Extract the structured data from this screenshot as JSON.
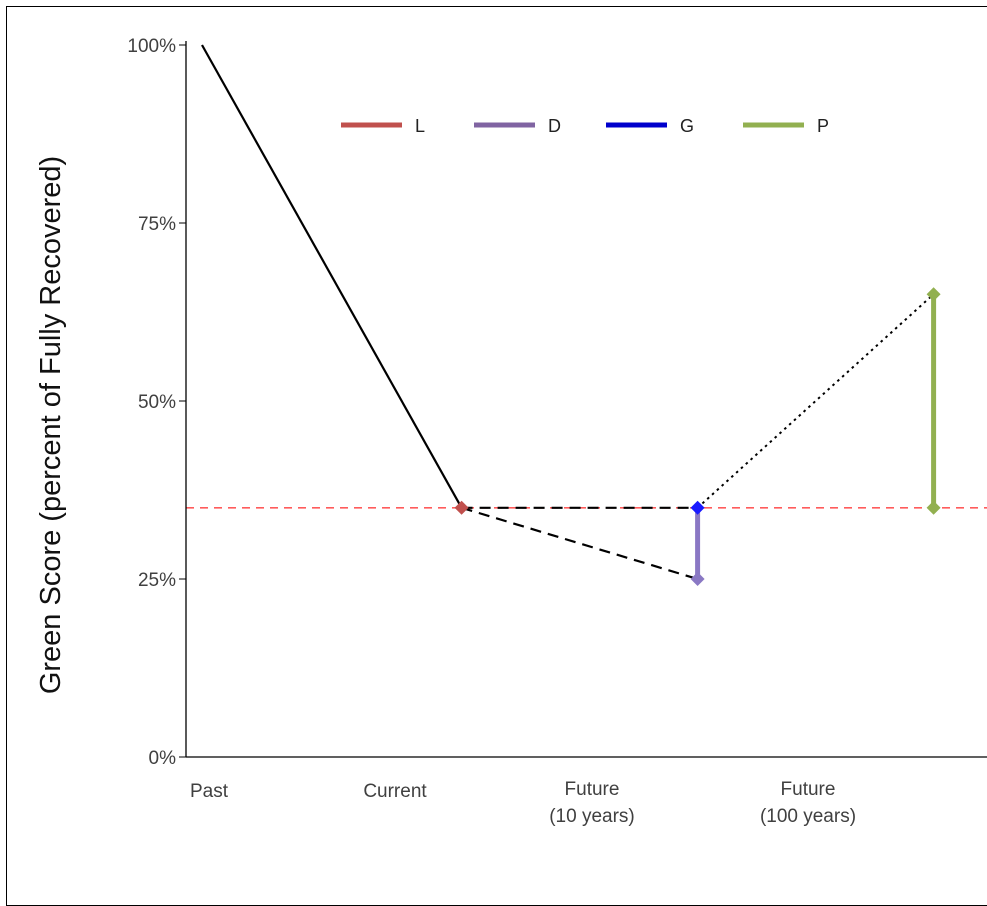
{
  "chart_data": {
    "type": "line",
    "ylabel": "Green Score (percent of Fully Recovered)",
    "xlabel": "",
    "ylim": [
      0,
      100
    ],
    "y_ticks": [
      "0%",
      "25%",
      "50%",
      "75%",
      "100%"
    ],
    "y_tick_values": [
      0,
      25,
      50,
      75,
      100
    ],
    "categories": [
      {
        "lines": [
          "Past"
        ]
      },
      {
        "lines": [
          "Current"
        ]
      },
      {
        "lines": [
          "Future",
          "(10 years)"
        ]
      },
      {
        "lines": [
          "Future",
          "(100 years)"
        ]
      }
    ],
    "reference_line": {
      "y": 35,
      "color": "#ff5c5c",
      "style": "dashed"
    },
    "trend_segments": [
      {
        "from": [
          0,
          100
        ],
        "to": [
          1.1,
          35
        ],
        "style": "solid"
      },
      {
        "from": [
          1.1,
          35
        ],
        "to": [
          2.1,
          35
        ],
        "style": "dashed"
      },
      {
        "from": [
          1.1,
          35
        ],
        "to": [
          2.1,
          25
        ],
        "style": "dashed"
      },
      {
        "from": [
          2.1,
          35
        ],
        "to": [
          3.1,
          65
        ],
        "style": "dotted"
      }
    ],
    "legend": [
      {
        "label": "L",
        "color": "#c0504d"
      },
      {
        "label": "D",
        "color": "#8064a2"
      },
      {
        "label": "G",
        "color": "#0000cc"
      },
      {
        "label": "P",
        "color": "#92b050"
      }
    ],
    "markers": [
      {
        "series": "L",
        "x": 1.1,
        "y": 35,
        "color": "#c0504d"
      },
      {
        "series": "D",
        "x": 2.1,
        "y": 25,
        "color": "#8a78c4"
      },
      {
        "series": "G",
        "x": 2.1,
        "y": 35,
        "color": "#1a1aff"
      },
      {
        "series": "P",
        "x": 3.1,
        "y": 65,
        "color": "#92b050"
      },
      {
        "series": "P",
        "x": 3.1,
        "y": 35,
        "color": "#92b050"
      }
    ],
    "ranges": [
      {
        "series": "D",
        "x": 2.1,
        "y_from": 25,
        "y_to": 35,
        "color": "#8a78c4"
      },
      {
        "series": "P",
        "x": 3.1,
        "y_from": 35,
        "y_to": 65,
        "color": "#92b050"
      }
    ]
  }
}
